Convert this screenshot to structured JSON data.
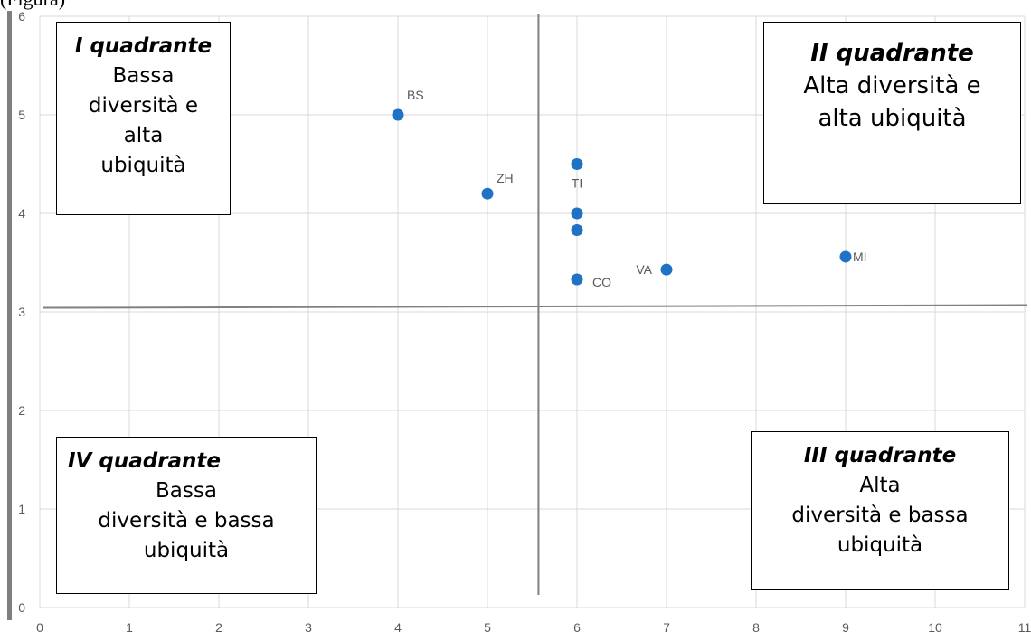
{
  "header_fragment": "(Figura)",
  "chart_data": {
    "type": "scatter",
    "xlim": [
      0,
      11
    ],
    "ylim": [
      0,
      6
    ],
    "x_ticks": [
      0,
      1,
      2,
      3,
      4,
      5,
      6,
      7,
      8,
      9,
      10,
      11
    ],
    "y_ticks": [
      0,
      1,
      2,
      3,
      4,
      5,
      6
    ],
    "grid": true,
    "point_color": "#1f72c4",
    "axis_color": "#808080",
    "points": [
      {
        "x": 4,
        "y": 5.0,
        "label": "BS"
      },
      {
        "x": 5,
        "y": 4.2,
        "label": "ZH"
      },
      {
        "x": 6,
        "y": 4.5,
        "label": "TI"
      },
      {
        "x": 6,
        "y": 4.0,
        "label": ""
      },
      {
        "x": 6,
        "y": 3.83,
        "label": ""
      },
      {
        "x": 6,
        "y": 3.33,
        "label": "CO"
      },
      {
        "x": 7,
        "y": 3.43,
        "label": "VA"
      },
      {
        "x": 9,
        "y": 3.56,
        "label": "MI"
      }
    ],
    "reference_lines": {
      "vertical_x": 5.57,
      "horizontal_y": 3.05
    },
    "quadrants": [
      {
        "title": "I quadrante",
        "lines": [
          "Bassa",
          "diversità e",
          "alta",
          "ubiquità"
        ]
      },
      {
        "title": "II quadrante",
        "lines": [
          "Alta diversità e",
          "alta ubiquità"
        ]
      },
      {
        "title": "III quadrante",
        "lines": [
          "Alta",
          "diversità e bassa",
          "ubiquità"
        ]
      },
      {
        "title": "IV quadrante",
        "lines": [
          "Bassa",
          "diversità e bassa",
          "ubiquità"
        ]
      }
    ]
  }
}
